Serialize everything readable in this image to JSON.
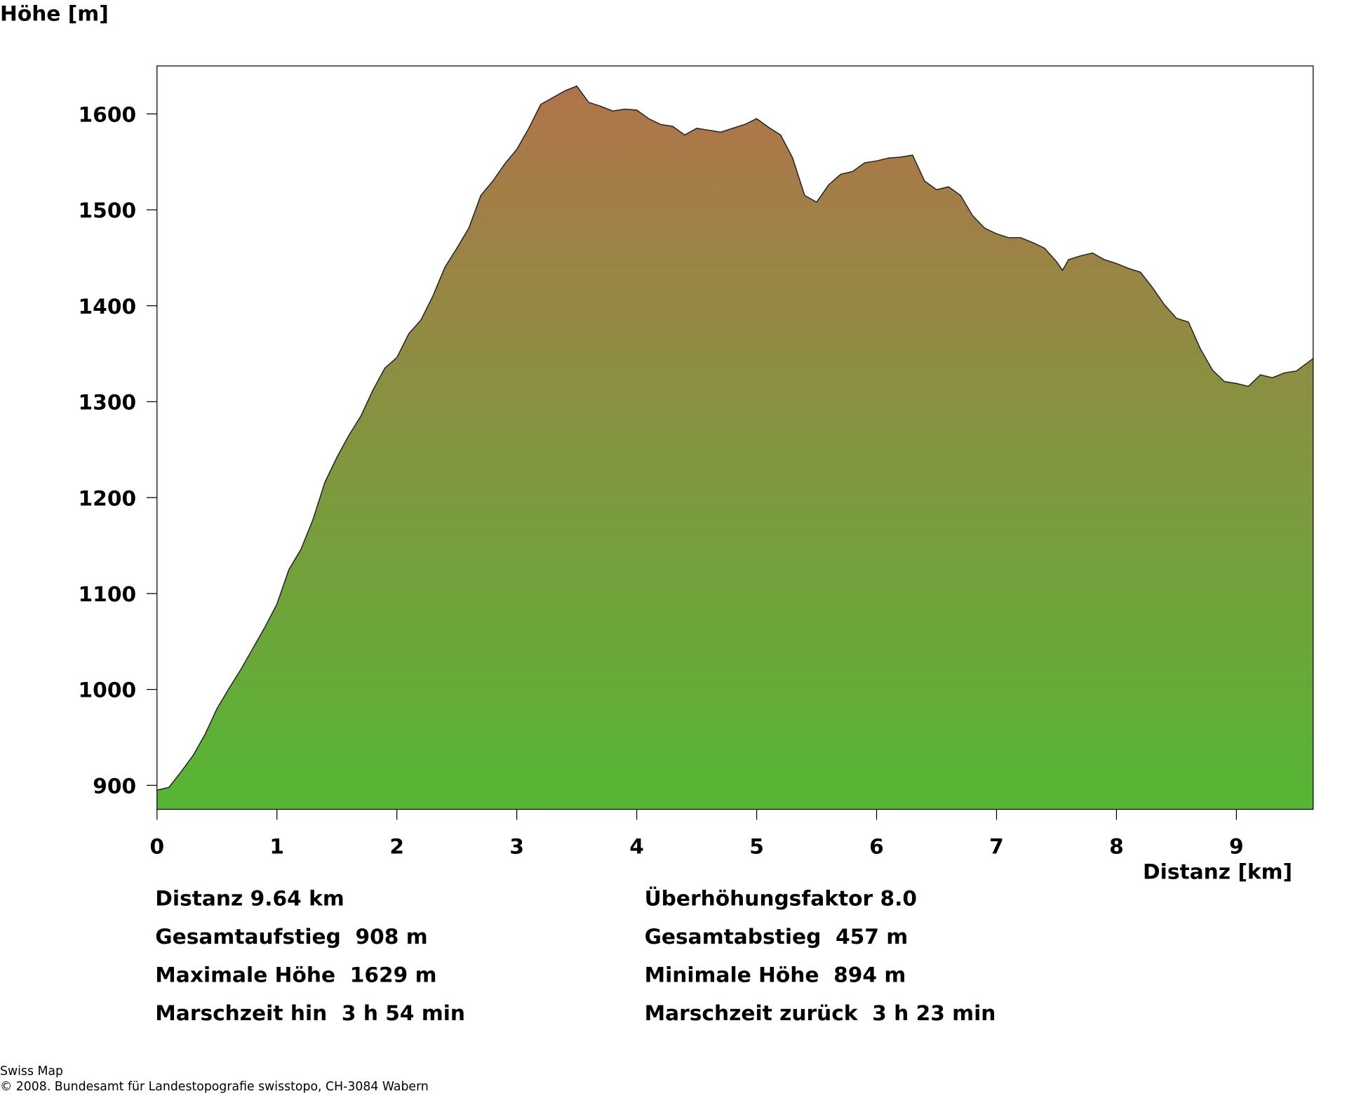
{
  "chart_data": {
    "type": "area",
    "y_axis_label": "Höhe [m]",
    "x_axis_label": "Distanz [km]",
    "x": [
      0,
      0.1,
      0.2,
      0.3,
      0.4,
      0.5,
      0.6,
      0.7,
      0.8,
      0.9,
      1.0,
      1.1,
      1.2,
      1.3,
      1.4,
      1.5,
      1.6,
      1.7,
      1.8,
      1.9,
      2.0,
      2.1,
      2.2,
      2.3,
      2.4,
      2.5,
      2.6,
      2.7,
      2.8,
      2.9,
      3.0,
      3.1,
      3.2,
      3.3,
      3.4,
      3.5,
      3.6,
      3.7,
      3.8,
      3.9,
      4.0,
      4.1,
      4.2,
      4.3,
      4.4,
      4.5,
      4.6,
      4.7,
      4.8,
      4.9,
      5.0,
      5.1,
      5.2,
      5.3,
      5.4,
      5.5,
      5.6,
      5.7,
      5.8,
      5.9,
      6.0,
      6.1,
      6.2,
      6.3,
      6.4,
      6.5,
      6.6,
      6.7,
      6.8,
      6.9,
      7.0,
      7.1,
      7.2,
      7.3,
      7.4,
      7.5,
      7.55,
      7.6,
      7.7,
      7.8,
      7.9,
      8.0,
      8.1,
      8.2,
      8.3,
      8.4,
      8.5,
      8.6,
      8.7,
      8.8,
      8.9,
      9.0,
      9.1,
      9.2,
      9.3,
      9.4,
      9.5,
      9.64
    ],
    "values": [
      895,
      898,
      914,
      931,
      953,
      980,
      1001,
      1021,
      1043,
      1065,
      1089,
      1125,
      1146,
      1177,
      1216,
      1242,
      1265,
      1285,
      1312,
      1335,
      1346,
      1371,
      1385,
      1410,
      1440,
      1460,
      1481,
      1515,
      1530,
      1548,
      1563,
      1585,
      1610,
      1617,
      1624,
      1629,
      1612,
      1608,
      1603,
      1605,
      1604,
      1595,
      1589,
      1587,
      1578,
      1585,
      1583,
      1581,
      1585,
      1589,
      1595,
      1586,
      1578,
      1554,
      1515,
      1508,
      1526,
      1537,
      1540,
      1549,
      1551,
      1554,
      1555,
      1557,
      1530,
      1521,
      1524,
      1515,
      1494,
      1481,
      1475,
      1471,
      1471,
      1466,
      1460,
      1446,
      1437,
      1448,
      1452,
      1455,
      1448,
      1444,
      1439,
      1435,
      1419,
      1401,
      1387,
      1383,
      1355,
      1333,
      1321,
      1319,
      1316,
      1328,
      1325,
      1330,
      1332,
      1345
    ],
    "gradient": [
      "#b0744a",
      "#55b634"
    ],
    "xlim": [
      0,
      9.64
    ],
    "ylim": [
      875,
      1650
    ],
    "xticks": [
      0,
      1,
      2,
      3,
      4,
      5,
      6,
      7,
      8,
      9
    ],
    "yticks": [
      900,
      1000,
      1100,
      1200,
      1300,
      1400,
      1500,
      1600
    ]
  },
  "stats": [
    [
      "Distanz 9.64 km",
      "Überhöhungsfaktor 8.0"
    ],
    [
      "Gesamtaufstieg  908 m",
      "Gesamtabstieg  457 m"
    ],
    [
      "Maximale Höhe  1629 m",
      "Minimale Höhe  894 m"
    ],
    [
      "Marschzeit hin  3 h 54 min",
      "Marschzeit zurück  3 h 23 min"
    ]
  ],
  "footer": [
    "Swiss Map",
    "© 2008. Bundesamt für Landestopografie swisstopo, CH-3084 Wabern"
  ]
}
